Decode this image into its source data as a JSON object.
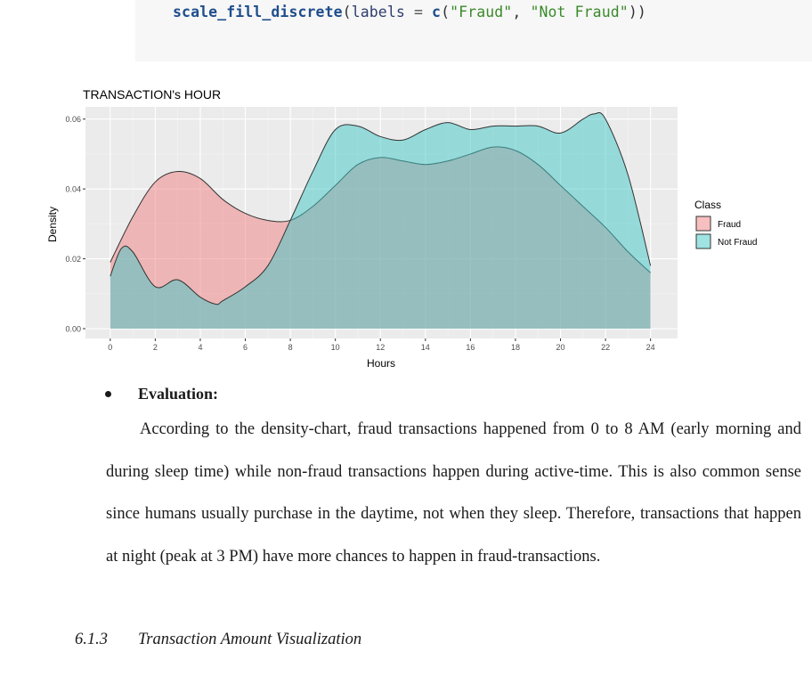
{
  "code": {
    "fn": "scale_fill_discrete",
    "arg": "labels",
    "op": " = ",
    "c_fn": "c",
    "str1": "\"Fraud\"",
    "sep": ", ",
    "str2": "\"Not Fraud\"",
    "close": "))"
  },
  "chart_data": {
    "type": "area",
    "title": "TRANSACTION's HOUR",
    "xlabel": "Hours",
    "ylabel": "Density",
    "xlim": [
      0,
      24
    ],
    "ylim": [
      0,
      0.06
    ],
    "xticks": [
      "0",
      "2",
      "4",
      "6",
      "8",
      "10",
      "12",
      "14",
      "16",
      "18",
      "20",
      "22",
      "24"
    ],
    "yticks": [
      "0.00",
      "0.02",
      "0.04",
      "0.06"
    ],
    "grid": true,
    "legend": {
      "title": "Class",
      "position": "right"
    },
    "series": [
      {
        "name": "Fraud",
        "color": "#f08080",
        "x": [
          0,
          1,
          2,
          3,
          4,
          5,
          6,
          7,
          8,
          9,
          10,
          11,
          12,
          13,
          14,
          15,
          16,
          17,
          18,
          19,
          20,
          21,
          22,
          23,
          24
        ],
        "y": [
          0.019,
          0.032,
          0.042,
          0.045,
          0.043,
          0.037,
          0.033,
          0.031,
          0.031,
          0.035,
          0.041,
          0.047,
          0.049,
          0.048,
          0.047,
          0.048,
          0.05,
          0.052,
          0.051,
          0.047,
          0.041,
          0.035,
          0.029,
          0.022,
          0.016
        ]
      },
      {
        "name": "Not Fraud",
        "color": "#3fc7c7",
        "x": [
          0,
          0.5,
          1,
          2,
          3,
          4,
          4.7,
          5,
          6,
          7,
          8,
          9,
          10,
          11,
          12,
          13,
          14,
          15,
          16,
          17,
          18,
          19,
          20,
          21,
          21.5,
          22,
          23,
          24
        ],
        "y": [
          0.015,
          0.023,
          0.022,
          0.012,
          0.014,
          0.009,
          0.007,
          0.008,
          0.012,
          0.018,
          0.031,
          0.045,
          0.057,
          0.058,
          0.055,
          0.054,
          0.057,
          0.059,
          0.057,
          0.058,
          0.058,
          0.058,
          0.056,
          0.06,
          0.0615,
          0.06,
          0.044,
          0.018
        ]
      }
    ]
  },
  "body": {
    "bullet": "Evaluation:",
    "paragraph": "According to the density-chart, fraud transactions happened from 0 to 8 AM (early morning and during sleep time) while non-fraud transactions happen during active-time. This is also common sense since humans usually purchase in the daytime, not when they sleep. Therefore, transactions that happen at night (peak at 3 PM) have more chances to happen in fraud-transactions.",
    "section_number": "6.1.3",
    "section_title": "Transaction Amount Visualization"
  }
}
